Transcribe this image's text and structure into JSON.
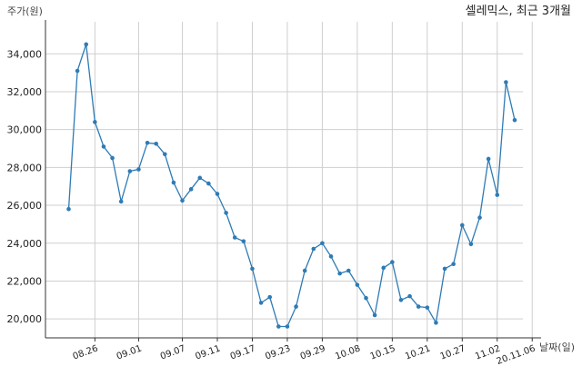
{
  "chart_data": {
    "type": "line",
    "title": "셀레믹스, 최근 3개월",
    "ylabel": "주가(원)",
    "xlabel": "날짜(일)",
    "ylim": [
      19000,
      35500
    ],
    "yticks": [
      20000,
      22000,
      24000,
      26000,
      28000,
      30000,
      32000,
      34000
    ],
    "ytick_labels": [
      "20,000",
      "22,000",
      "24,000",
      "26,000",
      "28,000",
      "30,000",
      "32,000",
      "34,000"
    ],
    "xtick_labels": [
      "08.26",
      "09.01",
      "09.07",
      "09.11",
      "09.17",
      "09.23",
      "09.29",
      "10.08",
      "10.15",
      "10.21",
      "10.27",
      "11.02",
      "20.11.06"
    ],
    "xtick_positions": [
      3,
      8,
      13,
      17,
      21,
      25,
      29,
      33,
      37,
      41,
      45,
      49,
      53
    ],
    "grid": true,
    "series": [
      {
        "color": "#2e7bb5",
        "values": [
          25800,
          33100,
          34500,
          30400,
          29100,
          28500,
          26200,
          27800,
          27900,
          29300,
          29250,
          28700,
          27200,
          26250,
          26850,
          27450,
          27150,
          26600,
          25600,
          24300,
          24100,
          22650,
          20850,
          21150,
          19600,
          19600,
          20650,
          22550,
          23700,
          24000,
          23300,
          22400,
          22550,
          21800,
          21100,
          20200,
          22700,
          23000,
          21000,
          21200,
          20650,
          20600,
          19800,
          22650,
          22900,
          24950,
          23950,
          25350,
          28450,
          26550,
          32500,
          30500
        ]
      }
    ]
  }
}
